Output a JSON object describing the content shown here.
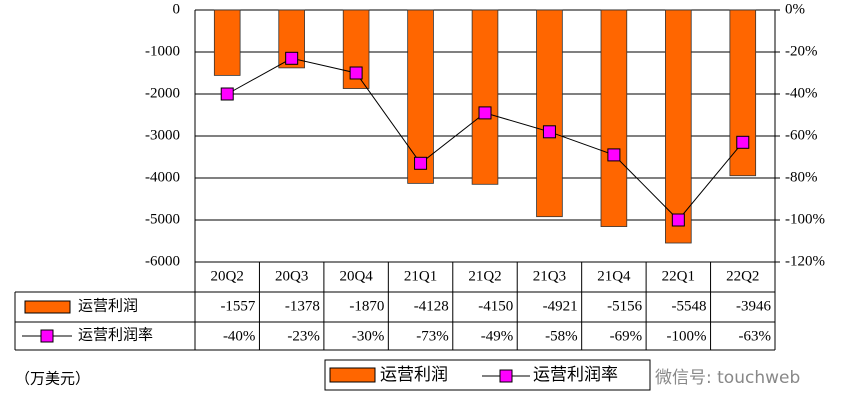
{
  "chart_data": {
    "type": "bar",
    "categories": [
      "20Q2",
      "20Q3",
      "20Q4",
      "21Q1",
      "21Q2",
      "21Q3",
      "21Q4",
      "22Q1",
      "22Q2"
    ],
    "series": [
      {
        "name": "运营利润",
        "type": "bar",
        "color": "#FF6600",
        "values": [
          -1557,
          -1378,
          -1870,
          -4128,
          -4150,
          -4921,
          -5156,
          -5548,
          -3946
        ]
      },
      {
        "name": "运营利润率",
        "type": "line",
        "axis": "y2",
        "color": "#FF00FF",
        "values": [
          -40,
          -23,
          -30,
          -73,
          -49,
          -58,
          -69,
          -100,
          -63
        ],
        "value_labels": [
          "-40%",
          "-23%",
          "-30%",
          "-73%",
          "-49%",
          "-58%",
          "-69%",
          "-100%",
          "-63%"
        ]
      }
    ],
    "ylim": [
      -6000,
      0
    ],
    "yticks": [
      0,
      -1000,
      -2000,
      -3000,
      -4000,
      -5000,
      -6000
    ],
    "y2lim": [
      -120,
      0
    ],
    "y2ticks": [
      {
        "value": 0,
        "label": "0%"
      },
      {
        "value": -20,
        "label": "-20%"
      },
      {
        "value": -40,
        "label": "-40%"
      },
      {
        "value": -60,
        "label": "-60%"
      },
      {
        "value": -80,
        "label": "-80%"
      },
      {
        "value": -100,
        "label": "-100%"
      },
      {
        "value": -120,
        "label": "-120%"
      }
    ],
    "grid": true,
    "unit_note": "（万美元）",
    "watermark": "微信号: touchweb"
  }
}
